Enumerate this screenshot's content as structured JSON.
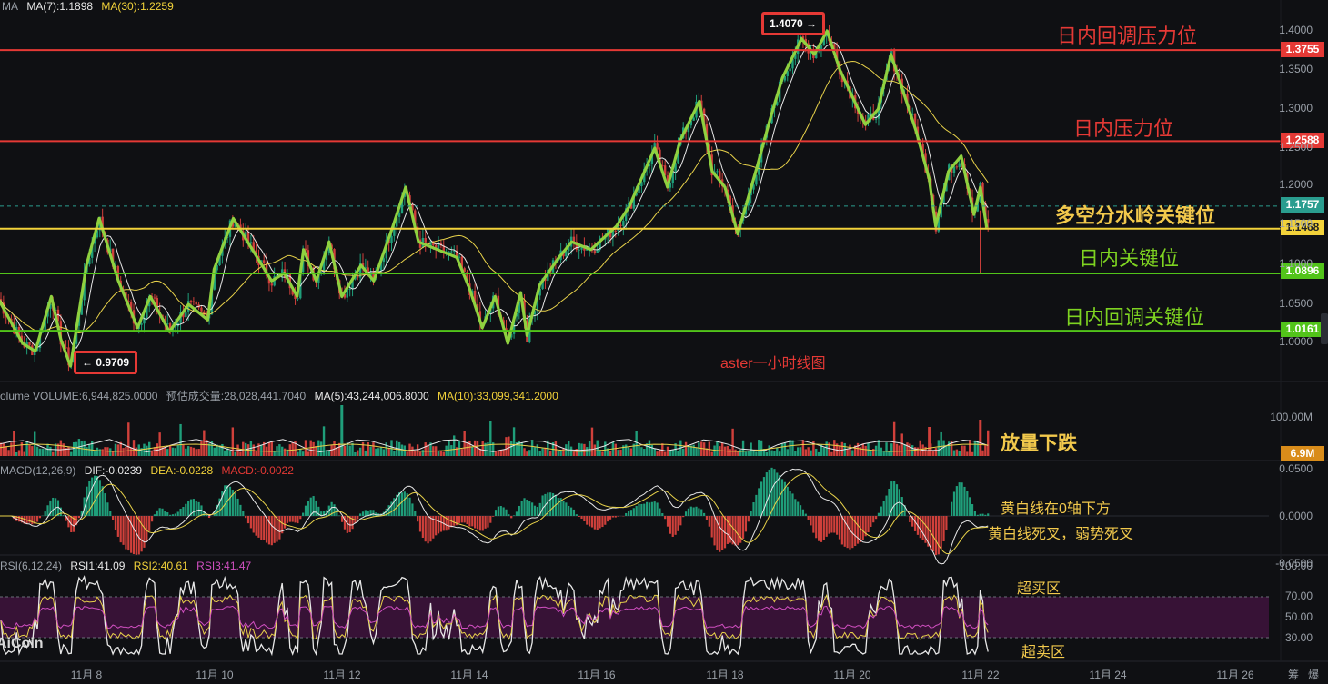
{
  "legend_main": {
    "ma_prefix": "MA",
    "ma7": "MA(7):1.1898",
    "ma30": "MA(30):1.2259"
  },
  "legend_volume": {
    "volume": "olume VOLUME:6,944,825.0000",
    "est": "预估成交量:28,028,441.7040",
    "ma5": "MA(5):43,244,006.8000",
    "ma10": "MA(10):33,099,341.2000"
  },
  "legend_macd": {
    "title": "MACD(12,26,9)",
    "dif": "DIF:-0.0239",
    "dea": "DEA:-0.0228",
    "macd": "MACD:-0.0022"
  },
  "legend_rsi": {
    "title": "RSI(6,12,24)",
    "rsi1": "RSI1:41.09",
    "rsi2": "RSI2:40.61",
    "rsi3": "RSI3:41.47"
  },
  "annotations": {
    "resistance_retrace": "日内回调压力位",
    "resistance": "日内压力位",
    "watershed": "多空分水岭关键位",
    "key": "日内关键位",
    "retrace_key": "日内回调关键位",
    "chart_caption": "aster一小时线图",
    "volume_note": "放量下跌",
    "macd_note1": "黄白线在0轴下方",
    "macd_note2": "黄白线死叉，弱势死叉",
    "overbought": "超买区",
    "oversold": "超卖区",
    "watermark": "AiCoin"
  },
  "markers": {
    "high": "1.4070 →",
    "low": "← 0.9709"
  },
  "price_levels": [
    {
      "label": "1.3755",
      "value": 1.3755,
      "color": "#e53935"
    },
    {
      "label": "1.2588",
      "value": 1.2588,
      "color": "#e53935"
    },
    {
      "label": "1.1757",
      "value": 1.1757,
      "color": "#2a9d8f"
    },
    {
      "label": "1.1468",
      "value": 1.1468,
      "color": "#f2d23a"
    },
    {
      "label": "1.0896",
      "value": 1.0896,
      "color": "#52c41a"
    },
    {
      "label": "1.0161",
      "value": 1.0161,
      "color": "#52c41a"
    }
  ],
  "volume_tag": "6.9M",
  "bottom_right": [
    "筹",
    "爆"
  ],
  "chart_data": {
    "type": "line",
    "title": "aster一小时线图",
    "price_axis": {
      "ticks": [
        "1.4000",
        "1.3500",
        "1.3000",
        "1.2500",
        "1.2000",
        "1.1500",
        "1.1000",
        "1.0500",
        "1.0000"
      ],
      "range": [
        0.96,
        1.43
      ]
    },
    "volume_axis": {
      "ticks": [
        "100.00M"
      ]
    },
    "macd_axis": {
      "ticks": [
        "0.0500",
        "0.0000",
        "-0.0500"
      ]
    },
    "rsi_axis": {
      "ticks": [
        "100.00",
        "70.00",
        "50.00",
        "30.00"
      ],
      "zone": [
        30,
        70
      ]
    },
    "x_ticks": [
      "11月 8",
      "11月 10",
      "11月 12",
      "11月 14",
      "11月 16",
      "11月 18",
      "11月 20",
      "11月 22",
      "11月 24",
      "11月 26"
    ],
    "price_path": [
      [
        6.6,
        1.06
      ],
      [
        7.0,
        1.0
      ],
      [
        7.2,
        0.99
      ],
      [
        7.45,
        1.06
      ],
      [
        7.6,
        1.005
      ],
      [
        7.75,
        0.9709
      ],
      [
        8.0,
        1.1
      ],
      [
        8.2,
        1.16
      ],
      [
        8.5,
        1.08
      ],
      [
        8.8,
        1.02
      ],
      [
        9.0,
        1.06
      ],
      [
        9.3,
        1.015
      ],
      [
        9.6,
        1.05
      ],
      [
        9.9,
        1.03
      ],
      [
        10.0,
        1.095
      ],
      [
        10.3,
        1.16
      ],
      [
        10.6,
        1.12
      ],
      [
        10.9,
        1.08
      ],
      [
        11.1,
        1.09
      ],
      [
        11.3,
        1.06
      ],
      [
        11.4,
        1.12
      ],
      [
        11.6,
        1.08
      ],
      [
        11.8,
        1.13
      ],
      [
        12.0,
        1.06
      ],
      [
        12.3,
        1.1
      ],
      [
        12.5,
        1.08
      ],
      [
        12.8,
        1.15
      ],
      [
        13.0,
        1.2
      ],
      [
        13.2,
        1.13
      ],
      [
        13.5,
        1.12
      ],
      [
        13.8,
        1.11
      ],
      [
        14.0,
        1.07
      ],
      [
        14.2,
        1.02
      ],
      [
        14.4,
        1.06
      ],
      [
        14.6,
        1.0
      ],
      [
        14.8,
        1.065
      ],
      [
        14.9,
        1.01
      ],
      [
        15.1,
        1.075
      ],
      [
        15.4,
        1.11
      ],
      [
        15.6,
        1.13
      ],
      [
        15.9,
        1.12
      ],
      [
        16.1,
        1.135
      ],
      [
        16.3,
        1.15
      ],
      [
        16.5,
        1.175
      ],
      [
        16.9,
        1.25
      ],
      [
        17.1,
        1.2
      ],
      [
        17.3,
        1.26
      ],
      [
        17.6,
        1.31
      ],
      [
        17.8,
        1.22
      ],
      [
        18.0,
        1.2
      ],
      [
        18.2,
        1.14
      ],
      [
        18.5,
        1.225
      ],
      [
        18.7,
        1.285
      ],
      [
        18.9,
        1.34
      ],
      [
        19.2,
        1.39
      ],
      [
        19.4,
        1.37
      ],
      [
        19.6,
        1.4
      ],
      [
        19.8,
        1.35
      ],
      [
        20.0,
        1.315
      ],
      [
        20.2,
        1.28
      ],
      [
        20.4,
        1.3
      ],
      [
        20.6,
        1.37
      ],
      [
        20.8,
        1.32
      ],
      [
        21.0,
        1.27
      ],
      [
        21.2,
        1.21
      ],
      [
        21.3,
        1.15
      ],
      [
        21.5,
        1.22
      ],
      [
        21.7,
        1.24
      ],
      [
        21.9,
        1.165
      ],
      [
        22.0,
        1.2
      ],
      [
        22.1,
        1.148
      ]
    ],
    "series": [
      {
        "name": "MA(7)",
        "color": "#e8e8e8"
      },
      {
        "name": "MA(30)",
        "color": "#f2d23a"
      }
    ]
  }
}
